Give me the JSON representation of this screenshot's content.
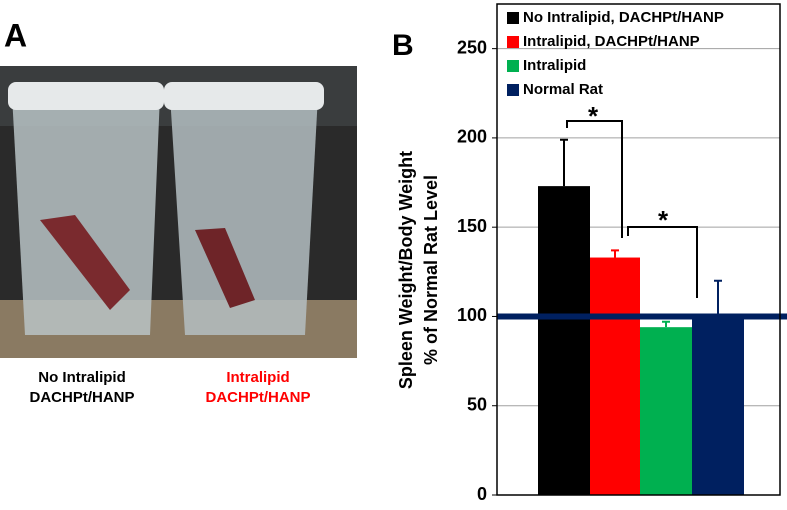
{
  "panel_a": {
    "label": "A",
    "captions": [
      {
        "lines": [
          "No Intralipid",
          "DACHPt/HANP"
        ],
        "color": "#000000"
      },
      {
        "lines": [
          "Intralipid",
          "DACHPt/HANP"
        ],
        "color": "#ff0000"
      }
    ]
  },
  "chart_data": {
    "type": "bar",
    "panel_label": "B",
    "y_label": [
      "Spleen Weight/Body Weight",
      "% of Normal Rat Level"
    ],
    "series": [
      {
        "name": "No Intralipid, DACHPt/HANP",
        "color": "#000000",
        "values": [
          173
        ],
        "errors": [
          26
        ]
      },
      {
        "name": "Intralipid, DACHPt/HANP",
        "color": "#ff0000",
        "values": [
          133
        ],
        "errors": [
          4
        ]
      },
      {
        "name": "Intralipid",
        "color": "#00b050",
        "values": [
          94
        ],
        "errors": [
          3
        ]
      },
      {
        "name": "Normal Rat",
        "color": "#002060",
        "values": [
          100
        ],
        "errors": [
          20
        ]
      }
    ],
    "reference_line": {
      "value": 100,
      "color": "#002060"
    },
    "annotations": [
      "*",
      "*"
    ],
    "ylim": [
      0,
      275
    ],
    "yticks": [
      0,
      50,
      100,
      150,
      200,
      250
    ],
    "grid": true
  }
}
